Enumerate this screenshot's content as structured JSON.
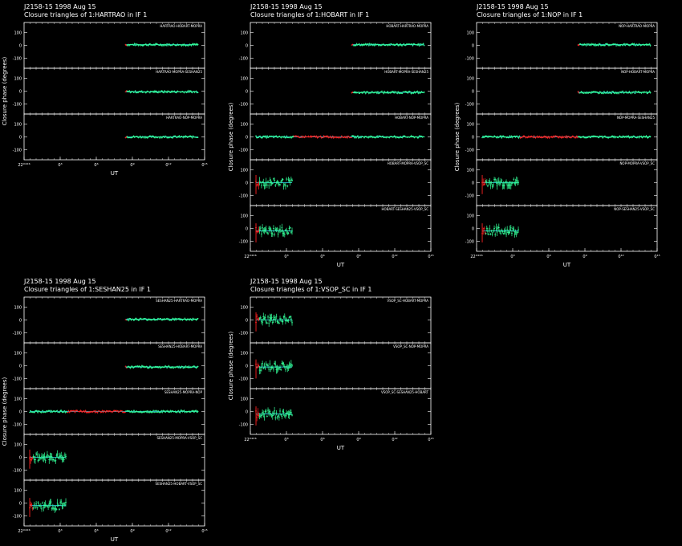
{
  "colors": {
    "background": "#000000",
    "axes": "#ffffff",
    "good_data": "#33ff99",
    "flagged_data": "#ff2222",
    "model_line": "#33ddff"
  },
  "common": {
    "source": "J2158-15",
    "date": "1998 Aug 15",
    "ylabel": "Closure phase   (degrees)",
    "xlabel": "UT",
    "x_ticks": [
      "22°⁴°⁶",
      "0³",
      "0⁶",
      "0⁹",
      "0¹²",
      "0¹⁵"
    ],
    "y_ticks": [
      "100",
      "0",
      "-100"
    ],
    "ylim": [
      -180,
      180
    ],
    "xlim_hours": [
      22,
      38
    ]
  },
  "chart_data": [
    {
      "type": "scatter",
      "title": "J2158-15  1998 Aug 15",
      "subtitle": "Closure triangles of 1:HARTRAO in IF 1",
      "series": [
        {
          "name": "HARTRAO-HOBART-MOPRA",
          "x_start": 31.0,
          "x_end": 37.4,
          "y": 5,
          "flag_end": 31.1
        },
        {
          "name": "HARTRAO-MOPRA-SESHAN25",
          "x_start": 31.0,
          "x_end": 37.4,
          "y": -5,
          "flag_end": 31.1
        },
        {
          "name": "HARTRAO-NOP-MOPRA",
          "x_start": 31.0,
          "x_end": 37.4,
          "y": 0,
          "flag_end": 31.1
        }
      ]
    },
    {
      "type": "scatter",
      "title": "J2158-15  1998 Aug 15",
      "subtitle": "Closure triangles of 1:HOBART in IF 1",
      "series": [
        {
          "name": "HOBART-HARTRAO-MOPRA",
          "x_start": 31.0,
          "x_end": 37.4,
          "y": 5,
          "flag_end": 31.1
        },
        {
          "name": "HOBART-MOPRA-SESHAN25",
          "x_start": 31.0,
          "x_end": 37.4,
          "y": -10,
          "flag_end": 31.1
        },
        {
          "name": "HOBART-NOP-MOPRA",
          "x_start": 22.5,
          "x_end": 37.4,
          "y": 0,
          "flag_start": 25.8,
          "flag_end": 31.0
        },
        {
          "name": "HOBART-MOPRA-VSOP_SC",
          "x_start": 22.5,
          "x_end": 25.7,
          "y": 0,
          "flag_end": 22.8
        },
        {
          "name": "HOBART-SESHAN25-VSOP_SC",
          "x_start": 22.5,
          "x_end": 25.7,
          "y": -20,
          "flag_end": 22.8
        }
      ]
    },
    {
      "type": "scatter",
      "title": "J2158-15  1998 Aug 15",
      "subtitle": "Closure triangles of 1:NOP in IF 1",
      "series": [
        {
          "name": "NOP-HARTRAO-MOPRA",
          "x_start": 31.0,
          "x_end": 37.4,
          "y": 5,
          "flag_end": 31.1
        },
        {
          "name": "NOP-HOBART-MOPRA",
          "x_start": 31.0,
          "x_end": 37.4,
          "y": -10,
          "flag_end": 31.1
        },
        {
          "name": "NOP-MOPRA-SESHAN25",
          "x_start": 22.5,
          "x_end": 37.4,
          "y": 0,
          "flag_start": 25.8,
          "flag_end": 31.0
        },
        {
          "name": "NOP-MOPRA-VSOP_SC",
          "x_start": 22.5,
          "x_end": 25.7,
          "y": 0,
          "flag_end": 22.8
        },
        {
          "name": "NOP-SESHAN25-VSOP_SC",
          "x_start": 22.5,
          "x_end": 25.7,
          "y": -20,
          "flag_end": 22.8
        }
      ]
    },
    {
      "type": "scatter",
      "title": "J2158-15  1998 Aug 15",
      "subtitle": "Closure triangles of 1:SESHAN25 in IF 1",
      "series": [
        {
          "name": "SESHAN25-HARTRAO-MOPRA",
          "x_start": 31.0,
          "x_end": 37.4,
          "y": 5,
          "flag_end": 31.1
        },
        {
          "name": "SESHAN25-HOBART-MOPRA",
          "x_start": 31.0,
          "x_end": 37.4,
          "y": -10,
          "flag_end": 31.1
        },
        {
          "name": "SESHAN25-MOPRA-NOP",
          "x_start": 22.5,
          "x_end": 37.4,
          "y": 0,
          "flag_start": 25.8,
          "flag_end": 31.0
        },
        {
          "name": "SESHAN25-MOPRA-VSOP_SC",
          "x_start": 22.5,
          "x_end": 25.7,
          "y": 0,
          "flag_end": 22.8
        },
        {
          "name": "SESHAN25-HOBART-VSOP_SC",
          "x_start": 22.5,
          "x_end": 25.7,
          "y": -20,
          "flag_end": 22.8
        }
      ]
    },
    {
      "type": "scatter",
      "title": "J2158-15  1998 Aug 15",
      "subtitle": "Closure triangles of 1:VSOP_SC in IF 1",
      "series": [
        {
          "name": "VSOP_SC-HOBART-MOPRA",
          "x_start": 22.5,
          "x_end": 25.7,
          "y": 0,
          "flag_end": 22.8
        },
        {
          "name": "VSOP_SC-NOP-MOPRA",
          "x_start": 22.5,
          "x_end": 25.7,
          "y": -10,
          "flag_end": 22.8
        },
        {
          "name": "VSOP_SC-SESHAN25-HOBART",
          "x_start": 22.5,
          "x_end": 25.7,
          "y": -20,
          "flag_end": 22.8
        }
      ]
    }
  ]
}
